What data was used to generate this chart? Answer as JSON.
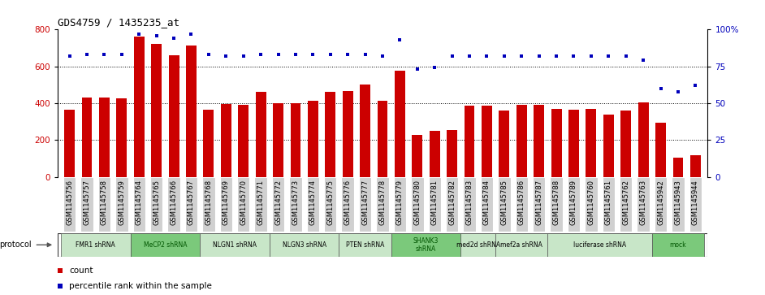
{
  "title": "GDS4759 / 1435235_at",
  "samples": [
    "GSM1145756",
    "GSM1145757",
    "GSM1145758",
    "GSM1145759",
    "GSM1145764",
    "GSM1145765",
    "GSM1145766",
    "GSM1145767",
    "GSM1145768",
    "GSM1145769",
    "GSM1145770",
    "GSM1145771",
    "GSM1145772",
    "GSM1145773",
    "GSM1145774",
    "GSM1145775",
    "GSM1145776",
    "GSM1145777",
    "GSM1145778",
    "GSM1145779",
    "GSM1145780",
    "GSM1145781",
    "GSM1145782",
    "GSM1145783",
    "GSM1145784",
    "GSM1145785",
    "GSM1145786",
    "GSM1145787",
    "GSM1145788",
    "GSM1145789",
    "GSM1145760",
    "GSM1145761",
    "GSM1145762",
    "GSM1145763",
    "GSM1145942",
    "GSM1145943",
    "GSM1145944"
  ],
  "counts": [
    365,
    430,
    430,
    425,
    760,
    720,
    660,
    715,
    365,
    395,
    390,
    460,
    400,
    400,
    415,
    460,
    465,
    500,
    415,
    575,
    230,
    250,
    255,
    385,
    385,
    360,
    390,
    390,
    370,
    365,
    370,
    340,
    360,
    405,
    295,
    105,
    120
  ],
  "percentiles": [
    82,
    83,
    83,
    83,
    97,
    96,
    94,
    97,
    83,
    82,
    82,
    83,
    83,
    83,
    83,
    83,
    83,
    83,
    82,
    93,
    73,
    74,
    82,
    82,
    82,
    82,
    82,
    82,
    82,
    82,
    82,
    82,
    82,
    79,
    60,
    58,
    62
  ],
  "protocols": [
    {
      "label": "FMR1 shRNA",
      "start": 0,
      "end": 4,
      "color": "#c8e6c8",
      "text_color": "#000000"
    },
    {
      "label": "MeCP2 shRNA",
      "start": 4,
      "end": 8,
      "color": "#7bc97b",
      "text_color": "#005500"
    },
    {
      "label": "NLGN1 shRNA",
      "start": 8,
      "end": 12,
      "color": "#c8e6c8",
      "text_color": "#000000"
    },
    {
      "label": "NLGN3 shRNA",
      "start": 12,
      "end": 16,
      "color": "#c8e6c8",
      "text_color": "#000000"
    },
    {
      "label": "PTEN shRNA",
      "start": 16,
      "end": 19,
      "color": "#c8e6c8",
      "text_color": "#000000"
    },
    {
      "label": "SHANK3\nshRNA",
      "start": 19,
      "end": 23,
      "color": "#7bc97b",
      "text_color": "#005500"
    },
    {
      "label": "med2d shRNA",
      "start": 23,
      "end": 25,
      "color": "#c8e6c8",
      "text_color": "#000000"
    },
    {
      "label": "mef2a shRNA",
      "start": 25,
      "end": 28,
      "color": "#c8e6c8",
      "text_color": "#000000"
    },
    {
      "label": "luciferase shRNA",
      "start": 28,
      "end": 34,
      "color": "#c8e6c8",
      "text_color": "#000000"
    },
    {
      "label": "mock",
      "start": 34,
      "end": 37,
      "color": "#7bc97b",
      "text_color": "#005500"
    }
  ],
  "bar_color": "#cc0000",
  "dot_color": "#0000bb",
  "ylim_left": [
    0,
    800
  ],
  "ylim_right": [
    0,
    100
  ],
  "yticks_left": [
    0,
    200,
    400,
    600,
    800
  ],
  "yticks_right": [
    0,
    25,
    50,
    75,
    100
  ],
  "ytick_right_labels": [
    "0",
    "25",
    "50",
    "75",
    "100%"
  ],
  "grid_values": [
    200,
    400,
    600
  ],
  "background_color": "#ffffff",
  "tick_box_color": "#d0d0d0",
  "title_fontsize": 9,
  "tick_fontsize": 6,
  "axis_fontsize": 7.5
}
